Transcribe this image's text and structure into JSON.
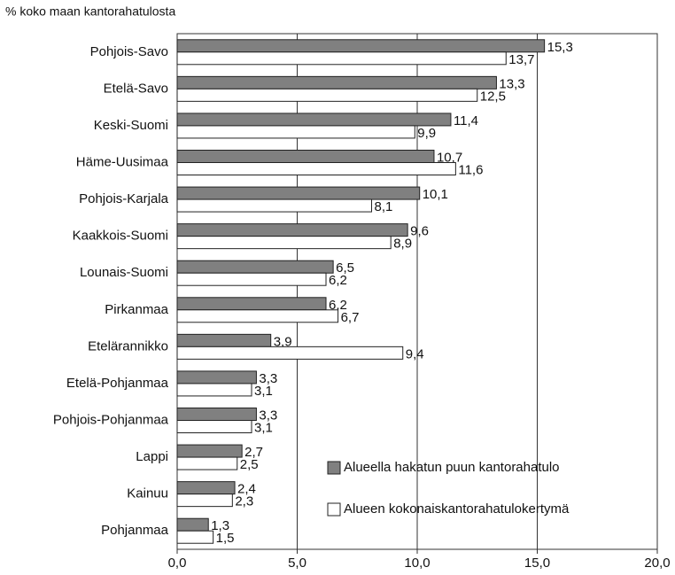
{
  "chart_data": {
    "type": "bar",
    "orientation": "horizontal",
    "y_axis_label": "% koko maan kantorahatulosta",
    "categories": [
      "Pohjois-Savo",
      "Etelä-Savo",
      "Keski-Suomi",
      "Häme-Uusimaa",
      "Pohjois-Karjala",
      "Kaakkois-Suomi",
      "Lounais-Suomi",
      "Pirkanmaa",
      "Etelärannikko",
      "Etelä-Pohjanmaa",
      "Pohjois-Pohjanmaa",
      "Lappi",
      "Kainuu",
      "Pohjanmaa"
    ],
    "series": [
      {
        "name": "Alueella hakatun puun kantorahatulo",
        "color": "#808080",
        "values": [
          15.3,
          13.3,
          11.4,
          10.7,
          10.1,
          9.6,
          6.5,
          6.2,
          3.9,
          3.3,
          3.3,
          2.7,
          2.4,
          1.3
        ],
        "value_labels": [
          "15,3",
          "13,3",
          "11,4",
          "10,7",
          "10,1",
          "9,6",
          "6,5",
          "6,2",
          "3,9",
          "3,3",
          "3,3",
          "2,7",
          "2,4",
          "1,3"
        ]
      },
      {
        "name": "Alueen kokonaiskantorahatulokertymä",
        "color": "#ffffff",
        "values": [
          13.7,
          12.5,
          9.9,
          11.6,
          8.1,
          8.9,
          6.2,
          6.7,
          9.4,
          3.1,
          3.1,
          2.5,
          2.3,
          1.5
        ],
        "value_labels": [
          "13,7",
          "12,5",
          "9,9",
          "11,6",
          "8,1",
          "8,9",
          "6,2",
          "6,7",
          "9,4",
          "3,1",
          "3,1",
          "2,5",
          "2,3",
          "1,5"
        ]
      }
    ],
    "xlim": [
      0,
      20
    ],
    "xticks": [
      {
        "value": 0,
        "label": "0,0"
      },
      {
        "value": 5,
        "label": "5,0"
      },
      {
        "value": 10,
        "label": "10,0"
      },
      {
        "value": 15,
        "label": "15,0"
      },
      {
        "value": 20,
        "label": "20,0"
      }
    ],
    "grid": true,
    "legend": "lower right"
  }
}
